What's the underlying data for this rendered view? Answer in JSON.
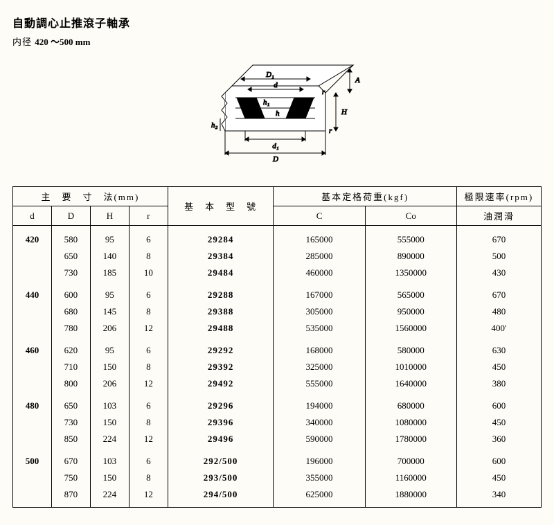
{
  "header": {
    "title": "自動調心止推滾子軸承",
    "subtitle_prefix": "内径",
    "subtitle_range": "420 ～500 mm"
  },
  "diagram": {
    "labels": {
      "D1": "D₁",
      "d": "d",
      "h1": "h₁",
      "h": "h",
      "r_top": "r",
      "A": "A",
      "H": "H",
      "r_bot": "r",
      "h2": "h₂",
      "d1": "d₁",
      "D": "D"
    }
  },
  "table": {
    "headers": {
      "dims": "主　要　寸　法(mm)",
      "model": "基　本　型　號",
      "load": "基本定格荷重(kgf)",
      "speed": "極限速率(rpm)",
      "d": "d",
      "D": "D",
      "H": "H",
      "r": "r",
      "C": "C",
      "Co": "Co",
      "oil": "油潤滑"
    },
    "groups": [
      {
        "d": "420",
        "rows": [
          {
            "D": "580",
            "H": "95",
            "r": "6",
            "model": "29284",
            "C": "165000",
            "Co": "555000",
            "rpm": "670"
          },
          {
            "D": "650",
            "H": "140",
            "r": "8",
            "model": "29384",
            "C": "285000",
            "Co": "890000",
            "rpm": "500"
          },
          {
            "D": "730",
            "H": "185",
            "r": "10",
            "model": "29484",
            "C": "460000",
            "Co": "1350000",
            "rpm": "430"
          }
        ]
      },
      {
        "d": "440",
        "rows": [
          {
            "D": "600",
            "H": "95",
            "r": "6",
            "model": "29288",
            "C": "167000",
            "Co": "565000",
            "rpm": "670"
          },
          {
            "D": "680",
            "H": "145",
            "r": "8",
            "model": "29388",
            "C": "305000",
            "Co": "950000",
            "rpm": "480"
          },
          {
            "D": "780",
            "H": "206",
            "r": "12",
            "model": "29488",
            "C": "535000",
            "Co": "1560000",
            "rpm": "400'"
          }
        ]
      },
      {
        "d": "460",
        "rows": [
          {
            "D": "620",
            "H": "95",
            "r": "6",
            "model": "29292",
            "C": "168000",
            "Co": "580000",
            "rpm": "630"
          },
          {
            "D": "710",
            "H": "150",
            "r": "8",
            "model": "29392",
            "C": "325000",
            "Co": "1010000",
            "rpm": "450"
          },
          {
            "D": "800",
            "H": "206",
            "r": "12",
            "model": "29492",
            "C": "555000",
            "Co": "1640000",
            "rpm": "380"
          }
        ]
      },
      {
        "d": "480",
        "rows": [
          {
            "D": "650",
            "H": "103",
            "r": "6",
            "model": "29296",
            "C": "194000",
            "Co": "680000",
            "rpm": "600"
          },
          {
            "D": "730",
            "H": "150",
            "r": "8",
            "model": "29396",
            "C": "340000",
            "Co": "1080000",
            "rpm": "450"
          },
          {
            "D": "850",
            "H": "224",
            "r": "12",
            "model": "29496",
            "C": "590000",
            "Co": "1780000",
            "rpm": "360"
          }
        ]
      },
      {
        "d": "500",
        "rows": [
          {
            "D": "670",
            "H": "103",
            "r": "6",
            "model": "292/500",
            "C": "196000",
            "Co": "700000",
            "rpm": "600"
          },
          {
            "D": "750",
            "H": "150",
            "r": "8",
            "model": "293/500",
            "C": "355000",
            "Co": "1160000",
            "rpm": "450"
          },
          {
            "D": "870",
            "H": "224",
            "r": "12",
            "model": "294/500",
            "C": "625000",
            "Co": "1880000",
            "rpm": "340"
          }
        ]
      }
    ]
  }
}
